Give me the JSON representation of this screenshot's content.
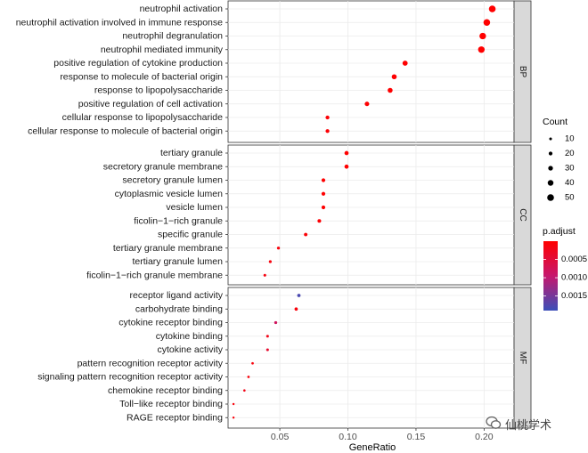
{
  "chart_data": {
    "type": "scatter",
    "xlabel": "GeneRatio",
    "ylabel": "",
    "xlim": [
      0.012,
      0.222
    ],
    "xticks": [
      0.05,
      0.1,
      0.15,
      0.2
    ],
    "xtick_labels": [
      "0.05",
      "0.10",
      "0.15",
      "0.20"
    ],
    "grid": true,
    "legend_position": "right",
    "size_legend": {
      "title": "Count",
      "values": [
        10,
        20,
        30,
        40,
        50
      ]
    },
    "color_legend": {
      "title": "p.adjust",
      "range": [
        1e-07,
        0.0019
      ],
      "ticks": [
        0.0005,
        0.001,
        0.0015
      ],
      "tick_labels": [
        "0.0005",
        "0.0010",
        "0.0015"
      ],
      "low_color": "#ff0000",
      "high_color": "#3b4fb8"
    },
    "facets": [
      {
        "label": "BP",
        "terms": [
          {
            "name": "neutrophil activation",
            "gene_ratio": 0.206,
            "count": 50,
            "p_adjust": 1e-07
          },
          {
            "name": "neutrophil activation involved in immune response",
            "gene_ratio": 0.202,
            "count": 49,
            "p_adjust": 1e-07
          },
          {
            "name": "neutrophil degranulation",
            "gene_ratio": 0.199,
            "count": 48,
            "p_adjust": 1e-07
          },
          {
            "name": "neutrophil mediated immunity",
            "gene_ratio": 0.198,
            "count": 48,
            "p_adjust": 1e-07
          },
          {
            "name": "positive regulation of cytokine production",
            "gene_ratio": 0.142,
            "count": 34,
            "p_adjust": 1e-05
          },
          {
            "name": "response to molecule of bacterial origin",
            "gene_ratio": 0.134,
            "count": 32,
            "p_adjust": 1e-05
          },
          {
            "name": "response to lipopolysaccharide",
            "gene_ratio": 0.131,
            "count": 32,
            "p_adjust": 1e-05
          },
          {
            "name": "positive regulation of cell activation",
            "gene_ratio": 0.114,
            "count": 28,
            "p_adjust": 3e-05
          },
          {
            "name": "cellular response to lipopolysaccharide",
            "gene_ratio": 0.085,
            "count": 21,
            "p_adjust": 5e-05
          },
          {
            "name": "cellular response to molecule of bacterial origin",
            "gene_ratio": 0.085,
            "count": 21,
            "p_adjust": 5e-05
          }
        ]
      },
      {
        "label": "CC",
        "terms": [
          {
            "name": "tertiary granule",
            "gene_ratio": 0.099,
            "count": 24,
            "p_adjust": 1e-06
          },
          {
            "name": "secretory granule membrane",
            "gene_ratio": 0.099,
            "count": 24,
            "p_adjust": 1e-06
          },
          {
            "name": "secretory granule lumen",
            "gene_ratio": 0.082,
            "count": 20,
            "p_adjust": 2e-05
          },
          {
            "name": "cytoplasmic vesicle lumen",
            "gene_ratio": 0.082,
            "count": 20,
            "p_adjust": 2e-05
          },
          {
            "name": "vesicle lumen",
            "gene_ratio": 0.082,
            "count": 20,
            "p_adjust": 2e-05
          },
          {
            "name": "ficolin−1−rich granule",
            "gene_ratio": 0.079,
            "count": 19,
            "p_adjust": 4e-05
          },
          {
            "name": "specific granule",
            "gene_ratio": 0.069,
            "count": 17,
            "p_adjust": 6e-05
          },
          {
            "name": "tertiary granule membrane",
            "gene_ratio": 0.049,
            "count": 12,
            "p_adjust": 0.0001
          },
          {
            "name": "tertiary granule lumen",
            "gene_ratio": 0.043,
            "count": 11,
            "p_adjust": 0.00012
          },
          {
            "name": "ficolin−1−rich granule membrane",
            "gene_ratio": 0.039,
            "count": 10,
            "p_adjust": 0.00015
          }
        ]
      },
      {
        "label": "MF",
        "terms": [
          {
            "name": "receptor ligand activity",
            "gene_ratio": 0.064,
            "count": 16,
            "p_adjust": 0.0018
          },
          {
            "name": "carbohydrate binding",
            "gene_ratio": 0.062,
            "count": 15,
            "p_adjust": 0.0001
          },
          {
            "name": "cytokine receptor binding",
            "gene_ratio": 0.047,
            "count": 12,
            "p_adjust": 0.0008
          },
          {
            "name": "cytokine binding",
            "gene_ratio": 0.041,
            "count": 10,
            "p_adjust": 0.0002
          },
          {
            "name": "cytokine activity",
            "gene_ratio": 0.041,
            "count": 10,
            "p_adjust": 0.0004
          },
          {
            "name": "pattern recognition receptor activity",
            "gene_ratio": 0.03,
            "count": 7,
            "p_adjust": 0.0001
          },
          {
            "name": "signaling pattern recognition receptor activity",
            "gene_ratio": 0.027,
            "count": 7,
            "p_adjust": 0.0001
          },
          {
            "name": "chemokine receptor binding",
            "gene_ratio": 0.024,
            "count": 6,
            "p_adjust": 0.0002
          },
          {
            "name": "Toll−like receptor binding",
            "gene_ratio": 0.016,
            "count": 4,
            "p_adjust": 0.0001
          },
          {
            "name": "RAGE receptor binding",
            "gene_ratio": 0.016,
            "count": 4,
            "p_adjust": 0.0001
          }
        ]
      }
    ]
  },
  "watermark": {
    "text": "仙桃学术",
    "icon": "wechat-icon"
  }
}
